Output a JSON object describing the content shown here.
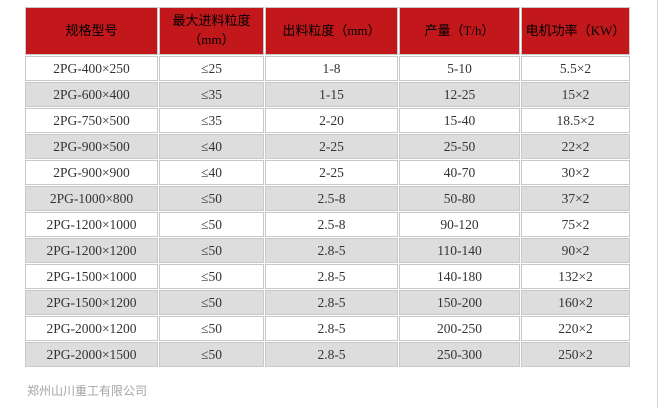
{
  "colors": {
    "header_bg": "#c2181b",
    "header_text": "#000000",
    "row_bg": "#ffffff",
    "row_alt_bg": "#dddddd",
    "cell_border": "#c8c8c8",
    "body_text": "#333333",
    "footer_text": "#a3a3a3"
  },
  "table": {
    "headers": [
      "规格型号",
      "最大进料粒度（mm）",
      "出料粒度（mm）",
      "产量（T/h）",
      "电机功率（KW）"
    ],
    "rows": [
      [
        "2PG-400×250",
        "≤25",
        "1-8",
        "5-10",
        "5.5×2"
      ],
      [
        "2PG-600×400",
        "≤35",
        "1-15",
        "12-25",
        "15×2"
      ],
      [
        "2PG-750×500",
        "≤35",
        "2-20",
        "15-40",
        "18.5×2"
      ],
      [
        "2PG-900×500",
        "≤40",
        "2-25",
        "25-50",
        "22×2"
      ],
      [
        "2PG-900×900",
        "≤40",
        "2-25",
        "40-70",
        "30×2"
      ],
      [
        "2PG-1000×800",
        "≤50",
        "2.5-8",
        "50-80",
        "37×2"
      ],
      [
        "2PG-1200×1000",
        "≤50",
        "2.5-8",
        "90-120",
        "75×2"
      ],
      [
        "2PG-1200×1200",
        "≤50",
        "2.8-5",
        "110-140",
        "90×2"
      ],
      [
        "2PG-1500×1000",
        "≤50",
        "2.8-5",
        "140-180",
        "132×2"
      ],
      [
        "2PG-1500×1200",
        "≤50",
        "2.8-5",
        "150-200",
        "160×2"
      ],
      [
        "2PG-2000×1200",
        "≤50",
        "2.8-5",
        "200-250",
        "220×2"
      ],
      [
        "2PG-2000×1500",
        "≤50",
        "2.8-5",
        "250-300",
        "250×2"
      ]
    ]
  },
  "footer": {
    "company": "郑州山川重工有限公司"
  }
}
